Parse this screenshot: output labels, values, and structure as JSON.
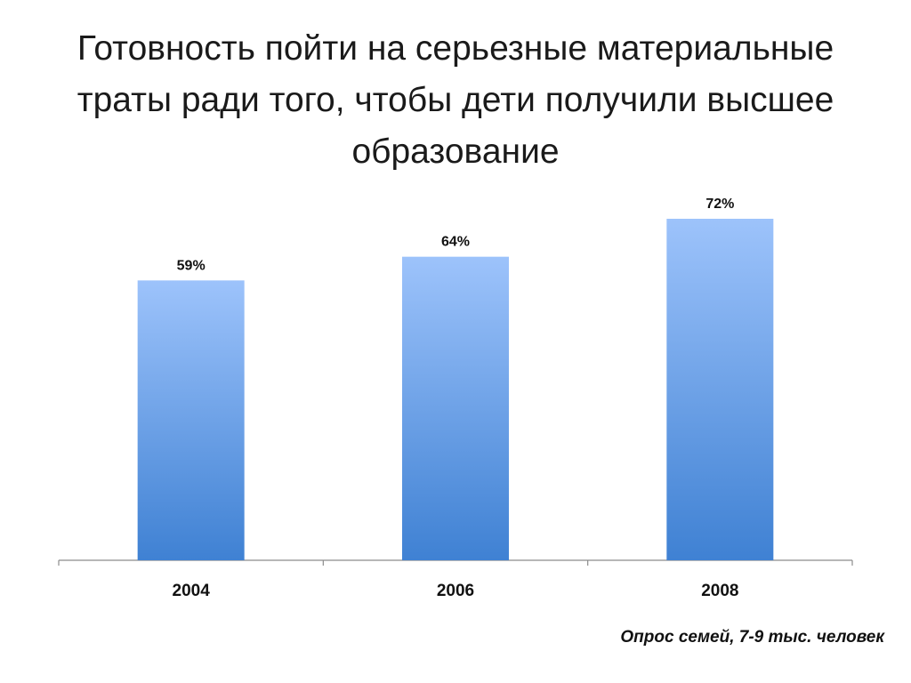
{
  "slide": {
    "title": "Готовность пойти на серьезные материальные траты ради того, чтобы дети получили высшее образование",
    "note": "Опрос семей, 7-9 тыс. человек"
  },
  "chart_data": {
    "type": "bar",
    "title": "Готовность пойти на серьезные материальные траты ради того, чтобы дети получили высшее образование",
    "categories": [
      "2004",
      "2006",
      "2008"
    ],
    "values": [
      59,
      64,
      72
    ],
    "data_labels": [
      "59%",
      "64%",
      "72%"
    ],
    "ylim": [
      0,
      72
    ],
    "grid": false,
    "legend": "none",
    "bar_gradient": [
      "#9dc3fb",
      "#3f81d3"
    ]
  }
}
